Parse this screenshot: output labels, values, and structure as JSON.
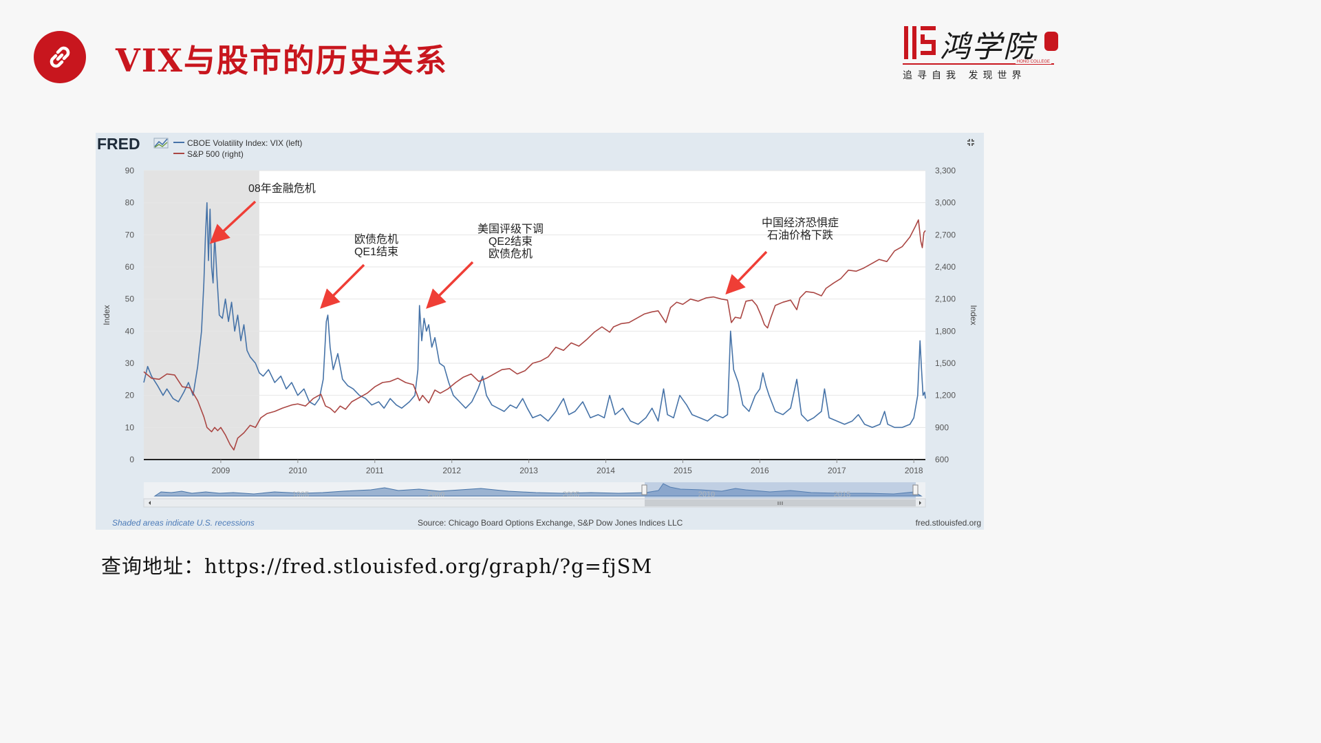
{
  "slide": {
    "title": "VIX与股市的历史关系",
    "url_line": "查询地址：https://fred.stlouisfed.org/graph/?g=fjSM",
    "accent_color": "#c8161e"
  },
  "logo": {
    "name": "鸿学院",
    "english": "HONG COLLEGE",
    "slogan": "追寻自我  发现世界"
  },
  "fred": {
    "brand": "FRED",
    "source": "Source: Chicago Board Options Exchange, S&P Dow Jones Indices LLC",
    "site": "fred.stlouisfed.org",
    "recession_note": "Shaded areas indicate U.S. recessions",
    "navigator_years": [
      "1995",
      "2000",
      "2005",
      "2010",
      "2015"
    ]
  },
  "chart_data": {
    "type": "line",
    "legend_placement": "top-left",
    "grid": true,
    "ylabel_left": "Index",
    "ylabel_right": "Index",
    "x_range": [
      2008.0,
      2018.15
    ],
    "ylim_left": [
      0,
      90
    ],
    "ylim_right": [
      600,
      3300
    ],
    "x_ticks": [
      "2009",
      "2010",
      "2011",
      "2012",
      "2013",
      "2014",
      "2015",
      "2016",
      "2017",
      "2018"
    ],
    "y_ticks_left": [
      "0",
      "10",
      "20",
      "30",
      "40",
      "50",
      "60",
      "70",
      "80",
      "90"
    ],
    "y_ticks_right": [
      "600",
      "900",
      "1,200",
      "1,500",
      "1,800",
      "2,100",
      "2,400",
      "2,700",
      "3,000",
      "3,300"
    ],
    "recession": {
      "start": 2008.0,
      "end": 2009.5
    },
    "series": [
      {
        "name": "CBOE Volatility Index: VIX (left)",
        "axis": "left",
        "color": "#4572a7",
        "points": [
          [
            2008.0,
            24
          ],
          [
            2008.05,
            29
          ],
          [
            2008.1,
            26
          ],
          [
            2008.18,
            23
          ],
          [
            2008.25,
            20
          ],
          [
            2008.3,
            22
          ],
          [
            2008.38,
            19
          ],
          [
            2008.45,
            18
          ],
          [
            2008.52,
            21
          ],
          [
            2008.58,
            24
          ],
          [
            2008.64,
            20
          ],
          [
            2008.7,
            29
          ],
          [
            2008.75,
            40
          ],
          [
            2008.78,
            55
          ],
          [
            2008.8,
            69
          ],
          [
            2008.82,
            80
          ],
          [
            2008.84,
            62
          ],
          [
            2008.86,
            78
          ],
          [
            2008.88,
            60
          ],
          [
            2008.9,
            55
          ],
          [
            2008.92,
            70
          ],
          [
            2008.95,
            57
          ],
          [
            2008.98,
            45
          ],
          [
            2009.02,
            44
          ],
          [
            2009.06,
            50
          ],
          [
            2009.1,
            43
          ],
          [
            2009.14,
            49
          ],
          [
            2009.18,
            40
          ],
          [
            2009.22,
            45
          ],
          [
            2009.26,
            37
          ],
          [
            2009.3,
            42
          ],
          [
            2009.34,
            34
          ],
          [
            2009.38,
            32
          ],
          [
            2009.45,
            30
          ],
          [
            2009.5,
            27
          ],
          [
            2009.55,
            26
          ],
          [
            2009.62,
            28
          ],
          [
            2009.7,
            24
          ],
          [
            2009.78,
            26
          ],
          [
            2009.85,
            22
          ],
          [
            2009.92,
            24
          ],
          [
            2010.0,
            20
          ],
          [
            2010.08,
            22
          ],
          [
            2010.15,
            18
          ],
          [
            2010.22,
            17
          ],
          [
            2010.28,
            19
          ],
          [
            2010.33,
            25
          ],
          [
            2010.37,
            43
          ],
          [
            2010.39,
            45
          ],
          [
            2010.42,
            35
          ],
          [
            2010.46,
            28
          ],
          [
            2010.52,
            33
          ],
          [
            2010.58,
            25
          ],
          [
            2010.65,
            23
          ],
          [
            2010.72,
            22
          ],
          [
            2010.8,
            20
          ],
          [
            2010.88,
            19
          ],
          [
            2010.96,
            17
          ],
          [
            2011.05,
            18
          ],
          [
            2011.12,
            16
          ],
          [
            2011.2,
            19
          ],
          [
            2011.28,
            17
          ],
          [
            2011.35,
            16
          ],
          [
            2011.45,
            18
          ],
          [
            2011.52,
            20
          ],
          [
            2011.56,
            28
          ],
          [
            2011.58,
            48
          ],
          [
            2011.61,
            37
          ],
          [
            2011.64,
            44
          ],
          [
            2011.67,
            40
          ],
          [
            2011.7,
            42
          ],
          [
            2011.74,
            35
          ],
          [
            2011.78,
            38
          ],
          [
            2011.84,
            30
          ],
          [
            2011.9,
            29
          ],
          [
            2011.96,
            24
          ],
          [
            2012.02,
            20
          ],
          [
            2012.1,
            18
          ],
          [
            2012.18,
            16
          ],
          [
            2012.26,
            18
          ],
          [
            2012.34,
            22
          ],
          [
            2012.4,
            26
          ],
          [
            2012.45,
            20
          ],
          [
            2012.52,
            17
          ],
          [
            2012.6,
            16
          ],
          [
            2012.68,
            15
          ],
          [
            2012.76,
            17
          ],
          [
            2012.84,
            16
          ],
          [
            2012.92,
            19
          ],
          [
            2012.98,
            16
          ],
          [
            2013.05,
            13
          ],
          [
            2013.15,
            14
          ],
          [
            2013.25,
            12
          ],
          [
            2013.35,
            15
          ],
          [
            2013.45,
            19
          ],
          [
            2013.52,
            14
          ],
          [
            2013.6,
            15
          ],
          [
            2013.7,
            18
          ],
          [
            2013.8,
            13
          ],
          [
            2013.9,
            14
          ],
          [
            2013.98,
            13
          ],
          [
            2014.05,
            20
          ],
          [
            2014.12,
            14
          ],
          [
            2014.22,
            16
          ],
          [
            2014.32,
            12
          ],
          [
            2014.42,
            11
          ],
          [
            2014.52,
            13
          ],
          [
            2014.6,
            16
          ],
          [
            2014.68,
            12
          ],
          [
            2014.75,
            22
          ],
          [
            2014.8,
            14
          ],
          [
            2014.88,
            13
          ],
          [
            2014.96,
            20
          ],
          [
            2015.05,
            17
          ],
          [
            2015.12,
            14
          ],
          [
            2015.22,
            13
          ],
          [
            2015.32,
            12
          ],
          [
            2015.42,
            14
          ],
          [
            2015.52,
            13
          ],
          [
            2015.58,
            14
          ],
          [
            2015.62,
            40
          ],
          [
            2015.66,
            28
          ],
          [
            2015.72,
            24
          ],
          [
            2015.78,
            17
          ],
          [
            2015.86,
            15
          ],
          [
            2015.94,
            20
          ],
          [
            2016.0,
            22
          ],
          [
            2016.04,
            27
          ],
          [
            2016.08,
            23
          ],
          [
            2016.12,
            20
          ],
          [
            2016.2,
            15
          ],
          [
            2016.3,
            14
          ],
          [
            2016.4,
            16
          ],
          [
            2016.48,
            25
          ],
          [
            2016.54,
            14
          ],
          [
            2016.62,
            12
          ],
          [
            2016.7,
            13
          ],
          [
            2016.8,
            15
          ],
          [
            2016.84,
            22
          ],
          [
            2016.9,
            13
          ],
          [
            2017.0,
            12
          ],
          [
            2017.1,
            11
          ],
          [
            2017.2,
            12
          ],
          [
            2017.28,
            14
          ],
          [
            2017.36,
            11
          ],
          [
            2017.46,
            10
          ],
          [
            2017.56,
            11
          ],
          [
            2017.62,
            15
          ],
          [
            2017.66,
            11
          ],
          [
            2017.75,
            10
          ],
          [
            2017.85,
            10
          ],
          [
            2017.95,
            11
          ],
          [
            2018.0,
            13
          ],
          [
            2018.05,
            20
          ],
          [
            2018.08,
            37
          ],
          [
            2018.1,
            28
          ],
          [
            2018.12,
            20
          ],
          [
            2018.14,
            21
          ],
          [
            2018.15,
            19
          ]
        ]
      },
      {
        "name": "S&P 500 (right)",
        "axis": "right",
        "color": "#aa4643",
        "points": [
          [
            2008.0,
            1420
          ],
          [
            2008.1,
            1360
          ],
          [
            2008.2,
            1350
          ],
          [
            2008.3,
            1400
          ],
          [
            2008.4,
            1390
          ],
          [
            2008.5,
            1280
          ],
          [
            2008.6,
            1270
          ],
          [
            2008.7,
            1150
          ],
          [
            2008.78,
            1000
          ],
          [
            2008.82,
            900
          ],
          [
            2008.88,
            860
          ],
          [
            2008.92,
            900
          ],
          [
            2008.96,
            870
          ],
          [
            2009.0,
            900
          ],
          [
            2009.06,
            830
          ],
          [
            2009.12,
            740
          ],
          [
            2009.17,
            690
          ],
          [
            2009.22,
            800
          ],
          [
            2009.3,
            850
          ],
          [
            2009.38,
            920
          ],
          [
            2009.45,
            900
          ],
          [
            2009.52,
            990
          ],
          [
            2009.6,
            1030
          ],
          [
            2009.7,
            1050
          ],
          [
            2009.8,
            1080
          ],
          [
            2009.92,
            1110
          ],
          [
            2010.0,
            1120
          ],
          [
            2010.1,
            1100
          ],
          [
            2010.2,
            1170
          ],
          [
            2010.3,
            1210
          ],
          [
            2010.36,
            1100
          ],
          [
            2010.42,
            1080
          ],
          [
            2010.48,
            1040
          ],
          [
            2010.55,
            1100
          ],
          [
            2010.62,
            1070
          ],
          [
            2010.7,
            1140
          ],
          [
            2010.8,
            1180
          ],
          [
            2010.9,
            1220
          ],
          [
            2011.0,
            1280
          ],
          [
            2011.1,
            1320
          ],
          [
            2011.2,
            1330
          ],
          [
            2011.3,
            1360
          ],
          [
            2011.4,
            1320
          ],
          [
            2011.5,
            1300
          ],
          [
            2011.58,
            1150
          ],
          [
            2011.62,
            1200
          ],
          [
            2011.7,
            1130
          ],
          [
            2011.78,
            1250
          ],
          [
            2011.85,
            1220
          ],
          [
            2011.95,
            1260
          ],
          [
            2012.05,
            1320
          ],
          [
            2012.15,
            1370
          ],
          [
            2012.25,
            1400
          ],
          [
            2012.35,
            1330
          ],
          [
            2012.45,
            1360
          ],
          [
            2012.55,
            1400
          ],
          [
            2012.65,
            1440
          ],
          [
            2012.75,
            1450
          ],
          [
            2012.85,
            1400
          ],
          [
            2012.95,
            1430
          ],
          [
            2013.05,
            1500
          ],
          [
            2013.15,
            1520
          ],
          [
            2013.25,
            1560
          ],
          [
            2013.35,
            1650
          ],
          [
            2013.45,
            1620
          ],
          [
            2013.55,
            1690
          ],
          [
            2013.65,
            1660
          ],
          [
            2013.75,
            1720
          ],
          [
            2013.85,
            1790
          ],
          [
            2013.95,
            1840
          ],
          [
            2014.05,
            1790
          ],
          [
            2014.1,
            1840
          ],
          [
            2014.2,
            1870
          ],
          [
            2014.3,
            1880
          ],
          [
            2014.4,
            1920
          ],
          [
            2014.5,
            1960
          ],
          [
            2014.6,
            1980
          ],
          [
            2014.68,
            1990
          ],
          [
            2014.78,
            1880
          ],
          [
            2014.84,
            2020
          ],
          [
            2014.92,
            2070
          ],
          [
            2015.0,
            2050
          ],
          [
            2015.1,
            2100
          ],
          [
            2015.2,
            2080
          ],
          [
            2015.3,
            2110
          ],
          [
            2015.4,
            2120
          ],
          [
            2015.5,
            2100
          ],
          [
            2015.58,
            2090
          ],
          [
            2015.63,
            1880
          ],
          [
            2015.68,
            1930
          ],
          [
            2015.75,
            1920
          ],
          [
            2015.82,
            2080
          ],
          [
            2015.9,
            2090
          ],
          [
            2015.96,
            2040
          ],
          [
            2016.02,
            1940
          ],
          [
            2016.06,
            1860
          ],
          [
            2016.1,
            1830
          ],
          [
            2016.14,
            1920
          ],
          [
            2016.2,
            2040
          ],
          [
            2016.3,
            2070
          ],
          [
            2016.4,
            2090
          ],
          [
            2016.48,
            2000
          ],
          [
            2016.52,
            2110
          ],
          [
            2016.6,
            2170
          ],
          [
            2016.7,
            2160
          ],
          [
            2016.8,
            2130
          ],
          [
            2016.86,
            2200
          ],
          [
            2016.96,
            2250
          ],
          [
            2017.05,
            2290
          ],
          [
            2017.15,
            2370
          ],
          [
            2017.25,
            2360
          ],
          [
            2017.35,
            2390
          ],
          [
            2017.45,
            2430
          ],
          [
            2017.55,
            2470
          ],
          [
            2017.65,
            2450
          ],
          [
            2017.75,
            2550
          ],
          [
            2017.85,
            2590
          ],
          [
            2017.95,
            2680
          ],
          [
            2018.02,
            2780
          ],
          [
            2018.06,
            2840
          ],
          [
            2018.09,
            2640
          ],
          [
            2018.11,
            2580
          ],
          [
            2018.13,
            2720
          ],
          [
            2018.15,
            2740
          ]
        ]
      }
    ],
    "annotations": [
      {
        "text": "08年金融危机"
      },
      {
        "text": "欧债危机\nQE1结束"
      },
      {
        "text": "美国评级下调\nQE2结束\n欧债危机"
      },
      {
        "text": "中国经济恐惧症\n石油价格下跌"
      }
    ]
  }
}
